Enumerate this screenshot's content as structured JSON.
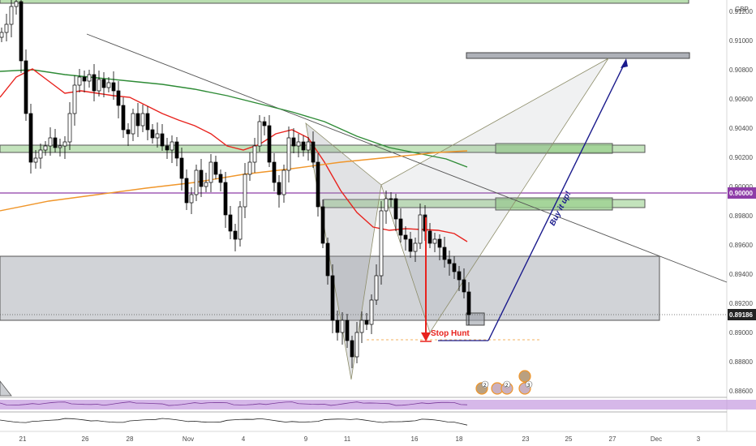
{
  "chart_data": {
    "type": "candlestick",
    "currency": "GBP",
    "x_ticks": [
      "21",
      "26",
      "28",
      "Nov",
      "4",
      "9",
      "11",
      "16",
      "18",
      "23",
      "25",
      "27",
      "Dec",
      "3"
    ],
    "y_ticks": [
      "0.91200",
      "0.91000",
      "0.90800",
      "0.90600",
      "0.90400",
      "0.90200",
      "0.90000",
      "0.89800",
      "0.89600",
      "0.89400",
      "0.89200",
      "0.89000",
      "0.88800",
      "0.88600"
    ],
    "ylim": [
      0.8855,
      0.9128
    ],
    "last_price": "0.89186",
    "level_price": "0.90000",
    "annotations": {
      "stop_hunt": "Stop Hunt",
      "buy_it_up": "Buy it up!"
    },
    "event_badges": [
      "2",
      "2",
      "3"
    ],
    "colors": {
      "up": "#ffffff",
      "down": "#000000",
      "ma_red": "#e8231e",
      "ma_green": "#2e8b36",
      "ma_orange": "#f0962a",
      "zone_green": "#9bd08f",
      "zone_gray": "#9a9ea6",
      "purple_line": "#8e3ca8",
      "arrow_red": "#e8231e",
      "arrow_navy": "#1a1a8c"
    }
  }
}
